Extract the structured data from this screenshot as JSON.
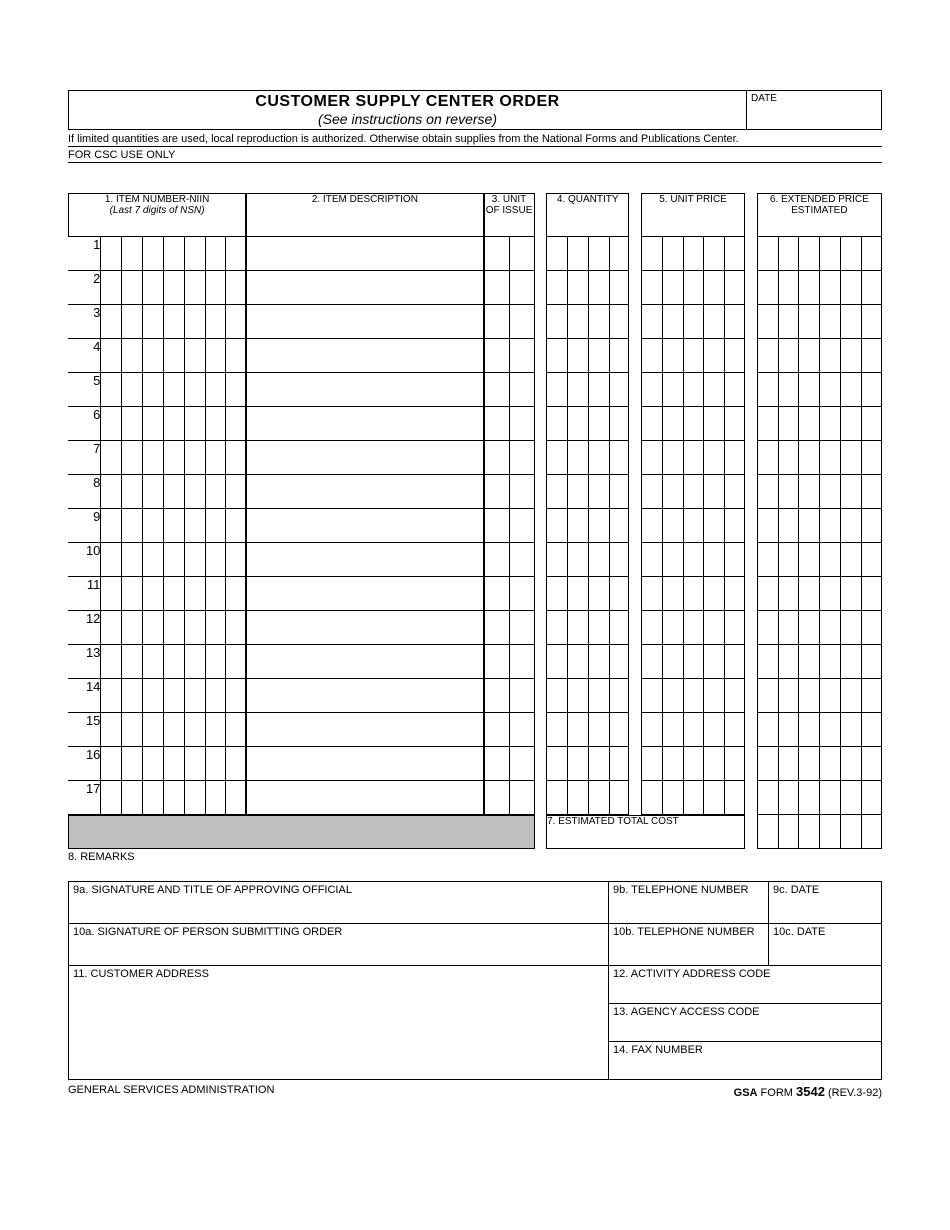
{
  "header": {
    "title": "CUSTOMER SUPPLY CENTER ORDER",
    "subtitle": "(See instructions on reverse)",
    "date_label": "DATE",
    "note": "If limited quantities are used, local reproduction is authorized. Otherwise obtain supplies from the National Forms and Publications Center.",
    "csc": "FOR CSC USE ONLY"
  },
  "columns": {
    "c1": "1. ITEM NUMBER-NIIN",
    "c1sub": "(Last 7 digits of NSN)",
    "c2": "2. ITEM DESCRIPTION",
    "c3": "3. UNIT OF ISSUE",
    "c4": "4. QUANTITY",
    "c5": "5. UNIT PRICE",
    "c6": "6. EXTENDED PRICE ESTIMATED"
  },
  "row_numbers": [
    "1",
    "2",
    "3",
    "4",
    "5",
    "6",
    "7",
    "8",
    "9",
    "10",
    "11",
    "12",
    "13",
    "14",
    "15",
    "16",
    "17"
  ],
  "total_label": "7. ESTIMATED TOTAL COST",
  "remarks": "8. REMARKS",
  "sig": {
    "f9a": "9a. SIGNATURE AND TITLE OF APPROVING OFFICIAL",
    "f9b": "9b. TELEPHONE NUMBER",
    "f9c": "9c. DATE",
    "f10a": "10a. SIGNATURE OF PERSON SUBMITTING ORDER",
    "f10b": "10b. TELEPHONE NUMBER",
    "f10c": "10c. DATE",
    "f11": "11. CUSTOMER ADDRESS",
    "f12": "12. ACTIVITY ADDRESS CODE",
    "f13": "13. AGENCY ACCESS CODE",
    "f14": "14. FAX NUMBER"
  },
  "footer": {
    "left": "GENERAL SERVICES ADMINISTRATION",
    "agency": "GSA",
    "form_word": "FORM",
    "form_number": "3542",
    "rev": "(REV.3-92)"
  },
  "layout": {
    "niin_digits": 7,
    "uoi_cells": 2,
    "qty_cells": 4,
    "price_cells": 5,
    "ext_cells": 6
  }
}
